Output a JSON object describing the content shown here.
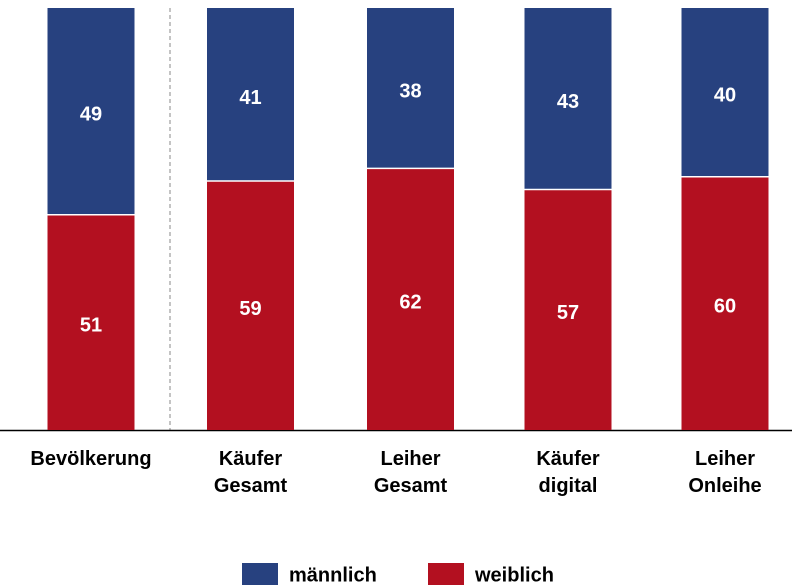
{
  "chart_data": {
    "type": "stacked_bar",
    "categories": [
      "Bevölkerung",
      "Käufer\nGesamt",
      "Leiher\nGesamt",
      "Käufer\ndigital",
      "Leiher\nOnleihe"
    ],
    "series": [
      {
        "name": "männlich",
        "color": "#27417f",
        "values": [
          49,
          41,
          38,
          43,
          40
        ]
      },
      {
        "name": "weiblich",
        "color": "#b31020",
        "values": [
          51,
          59,
          62,
          57,
          60
        ]
      }
    ],
    "ylim": [
      0,
      100
    ]
  }
}
